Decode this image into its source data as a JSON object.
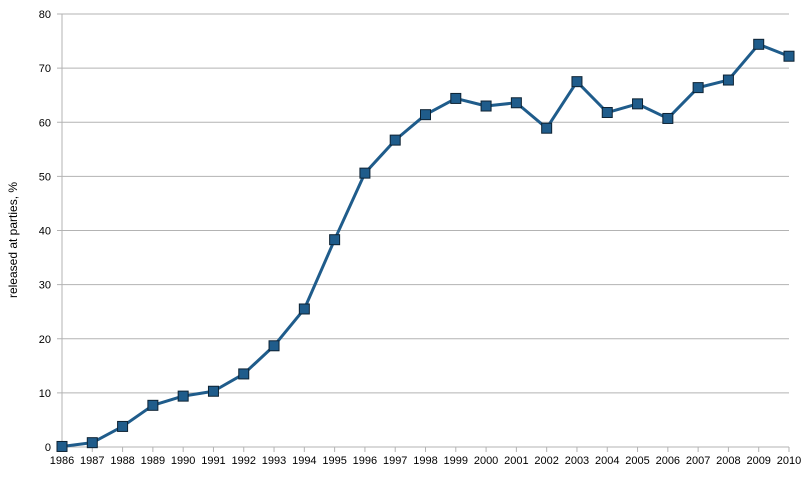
{
  "chart_data": {
    "type": "line",
    "title": "",
    "xlabel": "",
    "ylabel": "released at parties, %",
    "ylim": [
      0,
      80
    ],
    "yticks": [
      0,
      10,
      20,
      30,
      40,
      50,
      60,
      70,
      80
    ],
    "grid": "horizontal",
    "legend": "none",
    "categories": [
      "1986",
      "1987",
      "1988",
      "1989",
      "1990",
      "1991",
      "1992",
      "1993",
      "1994",
      "1995",
      "1996",
      "1997",
      "1998",
      "1999",
      "2000",
      "2001",
      "2002",
      "2003",
      "2004",
      "2005",
      "2006",
      "2007",
      "2008",
      "2009",
      "2010"
    ],
    "series": [
      {
        "values": [
          0.1,
          0.8,
          3.8,
          7.7,
          9.4,
          10.3,
          13.5,
          18.7,
          25.5,
          38.3,
          50.6,
          56.7,
          61.4,
          64.4,
          63.0,
          63.6,
          58.9,
          67.5,
          61.8,
          63.4,
          60.7,
          66.4,
          67.8,
          74.4,
          72.2
        ],
        "color": "#1f5c8b",
        "marker_fill": "#1f5c8b"
      }
    ],
    "colors": {
      "line": "#1f5c8b",
      "grid": "#b3b3b3",
      "axis": "#b3b3b3"
    }
  }
}
